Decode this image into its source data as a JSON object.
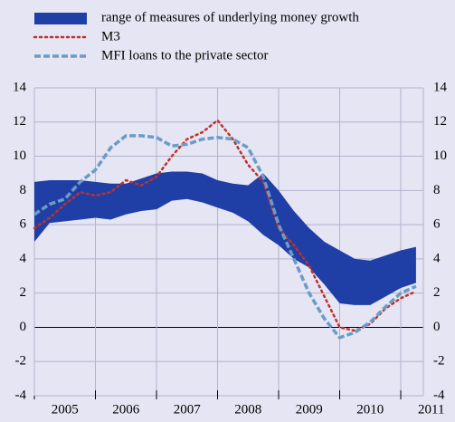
{
  "chart_data": {
    "type": "line",
    "x": [
      2005,
      2005.25,
      2005.5,
      2005.75,
      2006,
      2006.25,
      2006.5,
      2006.75,
      2007,
      2007.25,
      2007.5,
      2007.75,
      2008,
      2008.25,
      2008.5,
      2008.75,
      2009,
      2009.25,
      2009.5,
      2009.75,
      2010,
      2010.25,
      2010.5,
      2010.75,
      2011,
      2011.25
    ],
    "series": [
      {
        "name": "range of measures of underlying money growth",
        "color": "#1f3fa6",
        "style": "band",
        "values": [
          8.5,
          8.6,
          8.6,
          8.6,
          8.5,
          8.4,
          8.4,
          8.7,
          9.0,
          9.1,
          9.1,
          9.0,
          8.6,
          8.4,
          8.3,
          9.0,
          8.0,
          6.8,
          5.8,
          5.0,
          4.5,
          4.0,
          3.9,
          4.2,
          4.5,
          4.7
        ],
        "lower": [
          5.0,
          6.1,
          6.2,
          6.3,
          6.4,
          6.3,
          6.6,
          6.8,
          6.9,
          7.4,
          7.5,
          7.3,
          7.0,
          6.7,
          6.2,
          5.4,
          4.8,
          4.0,
          3.5,
          2.5,
          1.4,
          1.3,
          1.3,
          1.8,
          2.3,
          2.6
        ]
      },
      {
        "name": "M3",
        "color": "#c0302a",
        "style": "dotted",
        "values": [
          5.8,
          6.4,
          7.2,
          7.9,
          7.7,
          7.9,
          8.6,
          8.3,
          8.8,
          10.0,
          11.0,
          11.4,
          12.1,
          11.0,
          9.5,
          8.5,
          5.8,
          4.8,
          3.6,
          1.8,
          0.0,
          -0.2,
          0.2,
          1.1,
          1.7,
          2.1
        ]
      },
      {
        "name": "MFI loans to the private sector",
        "color": "#6b9cc8",
        "style": "dashed",
        "values": [
          6.6,
          7.2,
          7.5,
          8.5,
          9.2,
          10.5,
          11.2,
          11.2,
          11.1,
          10.6,
          10.7,
          11.0,
          11.1,
          11.0,
          10.5,
          8.8,
          6.0,
          4.0,
          2.0,
          0.5,
          -0.6,
          -0.3,
          0.3,
          1.2,
          2.0,
          2.4
        ]
      }
    ],
    "xlim": [
      2005,
      2011.37
    ],
    "xticks": [
      2005,
      2006,
      2007,
      2008,
      2009,
      2010,
      2011
    ],
    "ylim": [
      -4,
      14
    ],
    "yticks": [
      -4,
      -2,
      0,
      2,
      4,
      6,
      8,
      10,
      12,
      14
    ],
    "grid": true
  }
}
